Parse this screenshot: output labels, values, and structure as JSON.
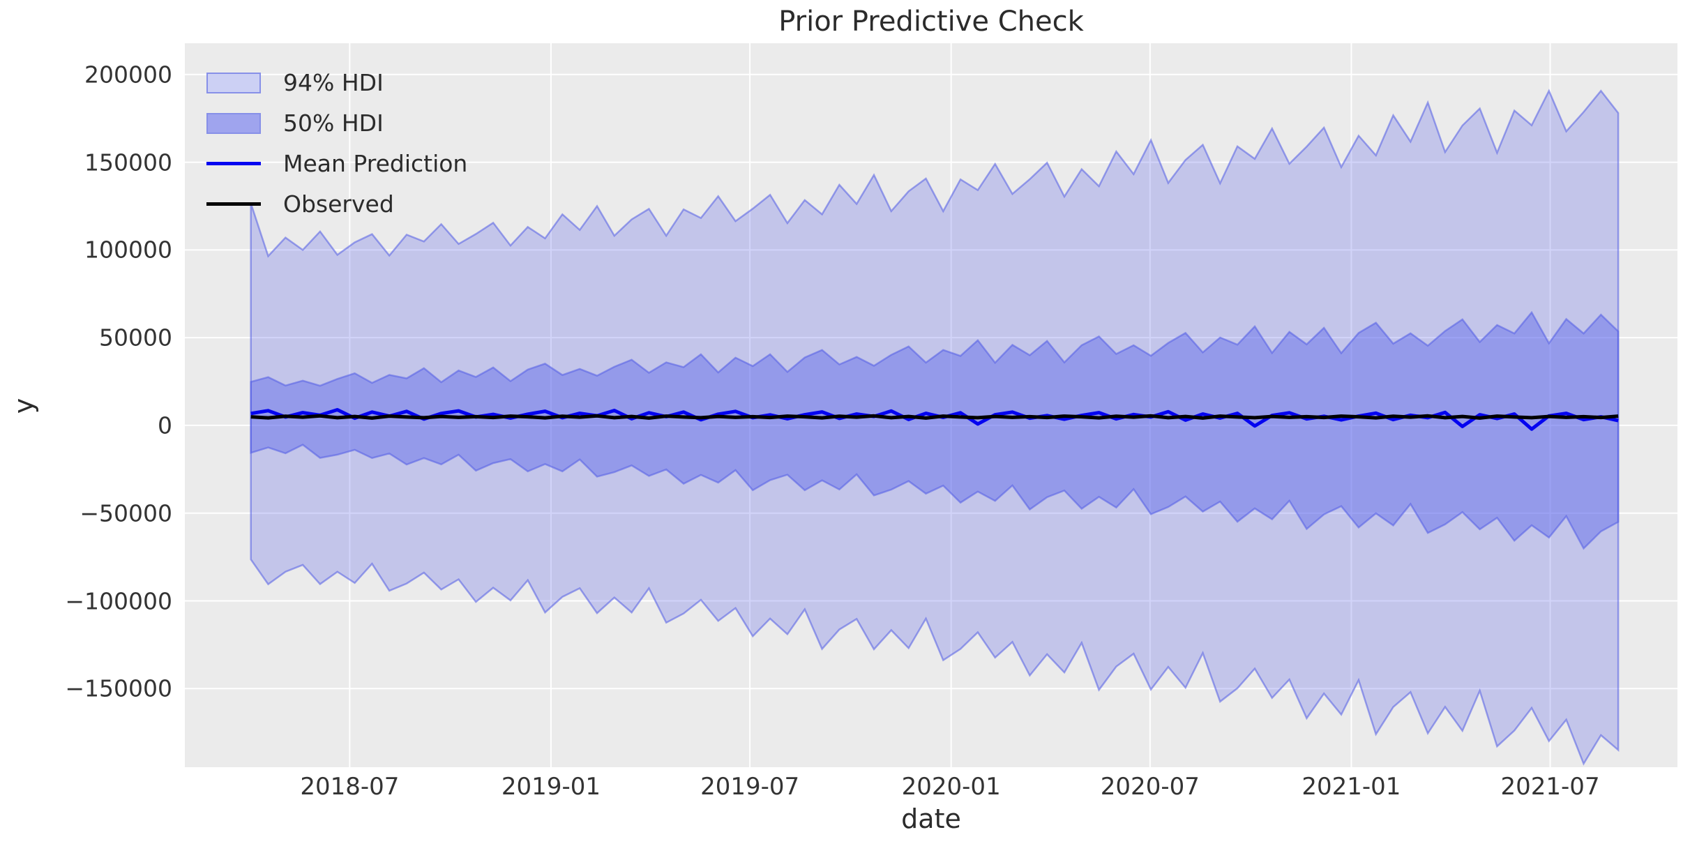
{
  "title": "Prior Predictive Check",
  "axes": {
    "xlabel": "date",
    "ylabel": "y",
    "x_domain": [
      2018.085,
      2021.815
    ],
    "y_domain": [
      -194800,
      217800
    ],
    "x_ticks": [
      {
        "v": 2018.497,
        "label": "2018-07"
      },
      {
        "v": 2019.0,
        "label": "2019-01"
      },
      {
        "v": 2019.497,
        "label": "2019-07"
      },
      {
        "v": 2020.0,
        "label": "2020-01"
      },
      {
        "v": 2020.497,
        "label": "2020-07"
      },
      {
        "v": 2021.0,
        "label": "2021-01"
      },
      {
        "v": 2021.497,
        "label": "2021-07"
      }
    ],
    "y_ticks": [
      {
        "v": 200000,
        "label": "200000"
      },
      {
        "v": 150000,
        "label": "150000"
      },
      {
        "v": 100000,
        "label": "100000"
      },
      {
        "v": 50000,
        "label": "50000"
      },
      {
        "v": 0,
        "label": "0"
      },
      {
        "v": -50000,
        "label": "−50000"
      },
      {
        "v": -100000,
        "label": "−100000"
      },
      {
        "v": -150000,
        "label": "−150000"
      }
    ],
    "grid": true
  },
  "legend": {
    "items": [
      {
        "kind": "patch",
        "label": "94% HDI"
      },
      {
        "kind": "patch",
        "label": "50% HDI"
      },
      {
        "kind": "line",
        "label": "Mean Prediction"
      },
      {
        "kind": "line",
        "label": "Observed"
      }
    ]
  },
  "colors": {
    "figure_bg": "#ffffff",
    "plot_bg": "#ebebeb",
    "grid": "#ffffff",
    "hdi94_fill": "rgba(92,102,235,0.28)",
    "hdi50_fill": "rgba(92,102,235,0.45)",
    "band_edge": "rgba(82,92,228,0.55)",
    "mean": "#0404f0",
    "observed": "#000000",
    "legend94_fill": "#ccd0f4",
    "legend50_fill": "#9fa4ee",
    "legend_edge": "#8790e8"
  },
  "chart_data": {
    "type": "area",
    "description": "Prior predictive check: 94% and 50% HDI bands with mean prediction and observed series, roughly biweekly points",
    "x_start_decimal_year": 2018.25,
    "x_end_decimal_year": 2021.667,
    "n_points": 80,
    "series": [
      {
        "name": "hdi94_upper",
        "values": [
          126500,
          96500,
          107000,
          100000,
          110500,
          97200,
          104300,
          109000,
          96800,
          108700,
          104800,
          114700,
          103400,
          109100,
          115500,
          102500,
          113100,
          106600,
          120300,
          111400,
          125000,
          108100,
          117400,
          123400,
          108100,
          123100,
          118200,
          130600,
          116400,
          123500,
          131400,
          115300,
          128400,
          120300,
          137100,
          126200,
          142700,
          122100,
          133400,
          140700,
          122100,
          140200,
          134100,
          149000,
          131900,
          140300,
          149700,
          130400,
          146000,
          136300,
          156100,
          143200,
          162600,
          138200,
          151300,
          159900,
          138000,
          159000,
          151900,
          169200,
          149100,
          158900,
          169700,
          147200,
          165100,
          153900,
          176700,
          161700,
          184000,
          155800,
          170900,
          180600,
          155400,
          179400,
          171000,
          190700,
          167600,
          178600,
          190700,
          178000
        ]
      },
      {
        "name": "hdi94_lower",
        "values": [
          -76400,
          -90500,
          -83400,
          -79500,
          -90400,
          -83400,
          -89800,
          -78800,
          -94200,
          -90100,
          -83900,
          -93500,
          -87700,
          -100600,
          -92500,
          -99700,
          -88200,
          -106600,
          -97700,
          -92800,
          -107000,
          -98100,
          -106600,
          -92800,
          -112400,
          -107200,
          -99400,
          -111400,
          -104100,
          -120100,
          -110100,
          -119000,
          -104800,
          -127400,
          -116300,
          -110300,
          -127600,
          -116700,
          -126900,
          -110100,
          -133800,
          -127400,
          -117900,
          -132300,
          -123400,
          -142500,
          -130400,
          -140800,
          -123900,
          -150700,
          -137400,
          -130100,
          -150500,
          -137600,
          -149500,
          -129700,
          -157400,
          -149800,
          -138600,
          -155300,
          -144800,
          -166900,
          -152800,
          -164800,
          -145100,
          -176000,
          -160500,
          -152000,
          -175500,
          -160400,
          -174000,
          -151200,
          -182900,
          -173900,
          -161000,
          -179900,
          -167700,
          -192800,
          -176500,
          -185000
        ]
      },
      {
        "name": "hdi50_upper",
        "values": [
          24800,
          27500,
          22700,
          25500,
          22600,
          26500,
          29700,
          24200,
          28800,
          26800,
          32600,
          24600,
          31300,
          27600,
          33000,
          25200,
          31800,
          35200,
          28700,
          32200,
          28300,
          33400,
          37400,
          30000,
          35900,
          33200,
          40500,
          30200,
          38600,
          33800,
          40500,
          30500,
          38700,
          43000,
          34700,
          39000,
          34000,
          40200,
          45000,
          35800,
          43000,
          39600,
          48500,
          35700,
          45900,
          40000,
          48100,
          35900,
          45700,
          50700,
          40700,
          45700,
          39700,
          47000,
          52700,
          41600,
          50100,
          46000,
          56400,
          41300,
          53300,
          46200,
          55600,
          41200,
          52700,
          58500,
          46600,
          52500,
          45400,
          53800,
          60400,
          47500,
          57200,
          52400,
          64400,
          46800,
          60600,
          52400,
          63100,
          53600
        ]
      },
      {
        "name": "hdi50_lower",
        "values": [
          -15600,
          -12600,
          -15900,
          -11000,
          -18500,
          -16700,
          -13900,
          -18600,
          -16000,
          -22300,
          -18600,
          -22200,
          -16700,
          -25800,
          -21500,
          -19200,
          -26200,
          -22000,
          -26200,
          -19400,
          -29200,
          -26600,
          -22800,
          -28800,
          -25100,
          -33200,
          -28200,
          -32600,
          -25500,
          -36900,
          -31200,
          -28100,
          -36900,
          -31300,
          -36500,
          -27900,
          -39900,
          -36600,
          -31700,
          -38900,
          -34300,
          -44000,
          -37700,
          -43000,
          -34200,
          -47900,
          -40900,
          -37100,
          -47500,
          -40700,
          -46800,
          -36300,
          -50600,
          -46500,
          -40500,
          -49100,
          -43400,
          -54900,
          -47300,
          -53500,
          -42900,
          -59000,
          -50700,
          -46000,
          -58200,
          -50100,
          -57000,
          -44800,
          -61300,
          -56400,
          -49400,
          -59200,
          -52600,
          -65700,
          -56900,
          -63900,
          -51700,
          -70100,
          -60400,
          -55000
        ]
      },
      {
        "name": "mean_prediction",
        "values": [
          6800,
          8400,
          4800,
          7300,
          5800,
          8900,
          4100,
          7600,
          5300,
          8000,
          3600,
          6800,
          8300,
          4800,
          6300,
          4200,
          6400,
          8100,
          4400,
          6900,
          5500,
          8500,
          3800,
          7200,
          5000,
          7600,
          3200,
          6400,
          8000,
          4400,
          6000,
          3800,
          6100,
          7700,
          4000,
          6500,
          5100,
          8200,
          3400,
          6900,
          4600,
          7200,
          800,
          6100,
          7600,
          4100,
          5600,
          3500,
          5700,
          7300,
          3700,
          6200,
          4800,
          7800,
          3000,
          6500,
          4200,
          6900,
          -300,
          5700,
          7200,
          3700,
          5200,
          3100,
          5300,
          7000,
          3300,
          5800,
          4400,
          7400,
          -600,
          6100,
          3900,
          6500,
          -2100,
          5400,
          6900,
          3300,
          4900,
          2700
        ]
      },
      {
        "name": "observed",
        "values": [
          4900,
          4300,
          5200,
          4700,
          5400,
          4400,
          5100,
          4200,
          5300,
          4800,
          4400,
          5100,
          4600,
          5000,
          4500,
          5300,
          4900,
          4300,
          5200,
          4700,
          5400,
          4400,
          5100,
          4200,
          5300,
          4800,
          4400,
          5100,
          4600,
          5000,
          4500,
          5300,
          4900,
          4300,
          5200,
          4700,
          5400,
          4400,
          5100,
          4200,
          5300,
          4800,
          4400,
          5100,
          4600,
          5000,
          4500,
          5300,
          4900,
          4300,
          5200,
          4700,
          5400,
          4400,
          5100,
          4200,
          5300,
          4800,
          4400,
          5100,
          4600,
          5000,
          4500,
          5300,
          4900,
          4300,
          5200,
          4700,
          5400,
          4400,
          5100,
          4200,
          5300,
          4800,
          4400,
          5100,
          4600,
          5000,
          4500,
          5300
        ]
      }
    ],
    "legend_position": "upper left",
    "grid": true
  }
}
